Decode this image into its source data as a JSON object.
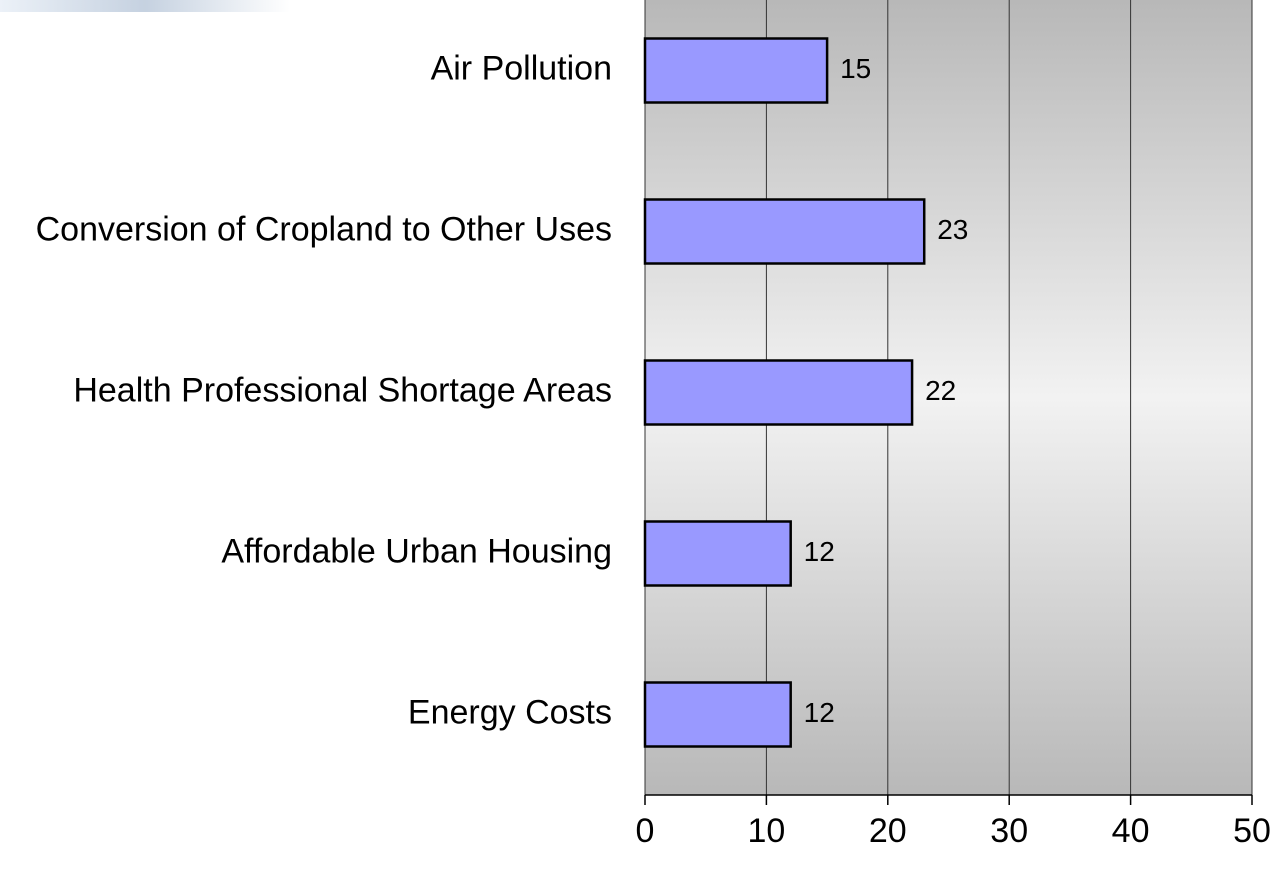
{
  "chart_data": {
    "type": "barh",
    "categories": [
      "Air Pollution",
      "Conversion of Cropland to Other Uses",
      "Health Professional Shortage Areas",
      "Affordable Urban Housing",
      "Energy Costs"
    ],
    "values": [
      15,
      23,
      22,
      12,
      12
    ],
    "color": "#9999ff",
    "xlim": [
      0,
      50
    ],
    "xticks": [
      0,
      10,
      20,
      30,
      40,
      50
    ],
    "grid": true
  }
}
